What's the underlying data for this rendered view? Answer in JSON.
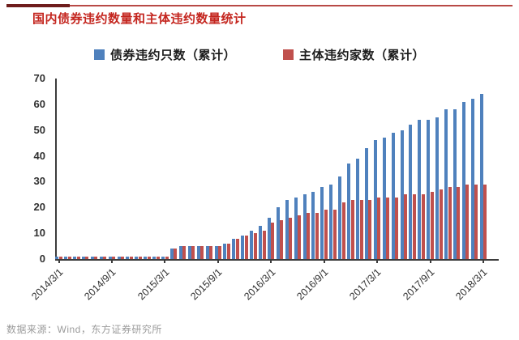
{
  "header": {
    "title": "国内债券违约数量和主体违约数量统计",
    "accent_color": "#6e1d1c",
    "rule_color": "#b84a46",
    "title_color": "#c4261f"
  },
  "footer": {
    "source": "数据来源：Wind，东方证券研究所"
  },
  "chart_data": {
    "type": "bar",
    "title": "国内债券违约数量和主体违约数量统计",
    "xlabel": "",
    "ylabel": "",
    "ylim": [
      0,
      70
    ],
    "y_ticks": [
      0,
      10,
      20,
      30,
      40,
      50,
      60,
      70
    ],
    "grid": false,
    "legend_position": "top",
    "x_tick_every": 6,
    "x_tick_labels": [
      "2014/3/1",
      "2014/9/1",
      "2015/3/1",
      "2015/9/1",
      "2016/3/1",
      "2016/9/1",
      "2017/3/1",
      "2017/9/1",
      "2018/3/1"
    ],
    "categories": [
      "2014/3",
      "2014/4",
      "2014/5",
      "2014/6",
      "2014/7",
      "2014/8",
      "2014/9",
      "2014/10",
      "2014/11",
      "2014/12",
      "2015/1",
      "2015/2",
      "2015/3",
      "2015/4",
      "2015/5",
      "2015/6",
      "2015/7",
      "2015/8",
      "2015/9",
      "2015/10",
      "2015/11",
      "2015/12",
      "2016/1",
      "2016/2",
      "2016/3",
      "2016/4",
      "2016/5",
      "2016/6",
      "2016/7",
      "2016/8",
      "2016/9",
      "2016/10",
      "2016/11",
      "2016/12",
      "2017/1",
      "2017/2",
      "2017/3",
      "2017/4",
      "2017/5",
      "2017/6",
      "2017/7",
      "2017/8",
      "2017/9",
      "2017/10",
      "2017/11",
      "2017/12",
      "2018/1",
      "2018/2",
      "2018/3"
    ],
    "series": [
      {
        "name": "债券违约只数（累计）",
        "color": "#4F81BD",
        "values": [
          1,
          1,
          1,
          1,
          1,
          1,
          1,
          1,
          1,
          1,
          1,
          1,
          1,
          4,
          5,
          5,
          5,
          5,
          5,
          6,
          8,
          9,
          11,
          13,
          16,
          20,
          23,
          24,
          25,
          26,
          28,
          29,
          32,
          37,
          39,
          43,
          46,
          47,
          49,
          50,
          52,
          54,
          54,
          55,
          58,
          58,
          61,
          62,
          64
        ]
      },
      {
        "name": "主体违约家数（累计）",
        "color": "#C0504D",
        "values": [
          1,
          1,
          1,
          1,
          1,
          1,
          1,
          1,
          1,
          1,
          1,
          1,
          1,
          4,
          5,
          5,
          5,
          5,
          5,
          6,
          8,
          9,
          10,
          11,
          14,
          15,
          16,
          17,
          18,
          18,
          19,
          19,
          22,
          23,
          23,
          23,
          24,
          24,
          24,
          25,
          25,
          25,
          26,
          27,
          28,
          28,
          29,
          29,
          29
        ]
      }
    ]
  }
}
